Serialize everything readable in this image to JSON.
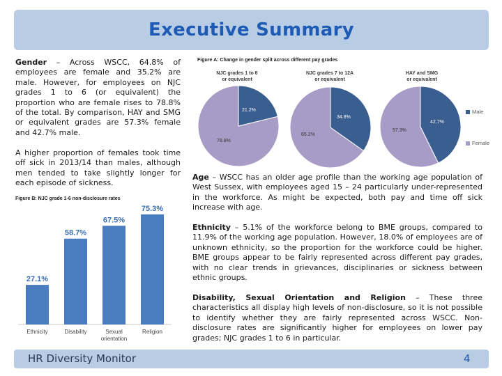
{
  "header": {
    "title": "Executive Summary"
  },
  "paragraphs": {
    "gender": {
      "heading": "Gender",
      "text": " – Across WSCC, 64.8% of employees are female and 35.2% are male. However, for employees on NJC grades 1 to 6 (or equivalent) the proportion who are female rises to 78.8% of the total. By comparison, HAY and SMG or equivalent grades are 57.3% female and 42.7% male."
    },
    "sickness": {
      "text": "A higher proportion of females took time off sick in 2013/14 than males, although men tended to take slightly longer for each episode of sickness."
    },
    "age": {
      "heading": "Age",
      "text": " – WSCC has an older age profile than the working age population of West Sussex, with employees aged 15 – 24 particularly under-represented in the workforce. As might be expected, both pay and time off sick increase with age."
    },
    "ethnicity": {
      "heading": "Ethnicity",
      "text": " – 5.1% of the workforce belong to BME groups, compared to 11.9% of the working age population. However, 18.0% of employees are of unknown ethnicity, so the proportion for the workforce could be higher. BME groups appear to be fairly represented across different pay grades, with no clear trends in grievances, disciplinaries or sickness between ethnic groups."
    },
    "disability": {
      "heading": "Disability, Sexual Orientation and Religion",
      "text": " – These three characteristics all display high levels of non-disclosure, so it is not possible to identify whether they are fairly represented across WSCC. Non-disclosure rates are significantly higher for employees on lower pay grades; NJC grades 1 to 6 in particular."
    }
  },
  "chart_data": [
    {
      "type": "pie",
      "title": "Figure A: Change in gender split across different pay grades",
      "colors": {
        "Male": "#3a5e8f",
        "Female": "#a79cc6"
      },
      "legend": [
        "Male",
        "Female"
      ],
      "legend_placement": "right",
      "pies": [
        {
          "label_line1": "NJC grades 1 to 6",
          "label_line2": "or equivalent",
          "male": 21.2,
          "female": 78.8,
          "male_label": "21.2%",
          "female_label": "78.8%"
        },
        {
          "label_line1": "NJC grades 7 to 12A",
          "label_line2": "or equivalent",
          "male": 34.8,
          "female": 65.2,
          "male_label": "34.8%",
          "female_label": "65.2%"
        },
        {
          "label_line1": "HAY and SMG",
          "label_line2": "or equivalent",
          "male": 42.7,
          "female": 57.3,
          "male_label": "42.7%",
          "female_label": "57.3%"
        }
      ]
    },
    {
      "type": "bar",
      "title": "Figure B: NJC grade 1-6 non-disclosure rates",
      "categories": [
        "Ethnicity",
        "Disability",
        "Sexual orientation",
        "Religion"
      ],
      "values": [
        27.1,
        58.7,
        67.5,
        75.3
      ],
      "value_labels": [
        "27.1%",
        "58.7%",
        "67.5%",
        "75.3%"
      ],
      "ylim": [
        0,
        80
      ],
      "grid": false,
      "bar_color": "#4a7cc0",
      "label_color": "#3a6db5"
    }
  ],
  "footer": {
    "title": "HR Diversity Monitor",
    "page": "4"
  }
}
